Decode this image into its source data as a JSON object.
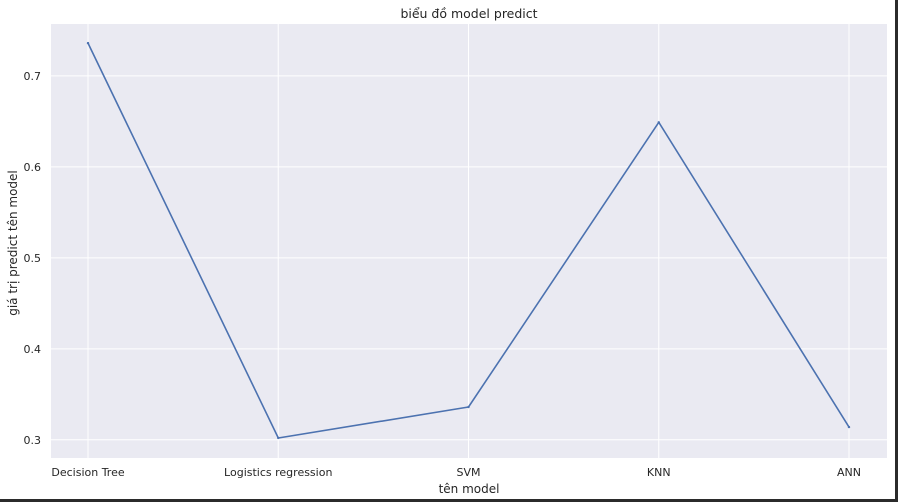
{
  "chart_data": {
    "type": "line",
    "title": "biểu đồ model predict",
    "xlabel": "tên model",
    "ylabel": "giá trị predict tên model",
    "categories": [
      "Decision Tree",
      "Logistics regression",
      "SVM",
      "KNN",
      "ANN"
    ],
    "values": [
      0.736,
      0.302,
      0.336,
      0.649,
      0.314
    ],
    "ylim": [
      0.28,
      0.757
    ],
    "yticks": [
      "0.3",
      "0.4",
      "0.5",
      "0.6",
      "0.7"
    ],
    "grid": true,
    "colors": {
      "plot_background": "#eaeaf2",
      "grid": "#ffffff",
      "line": "#4c72b0"
    }
  }
}
